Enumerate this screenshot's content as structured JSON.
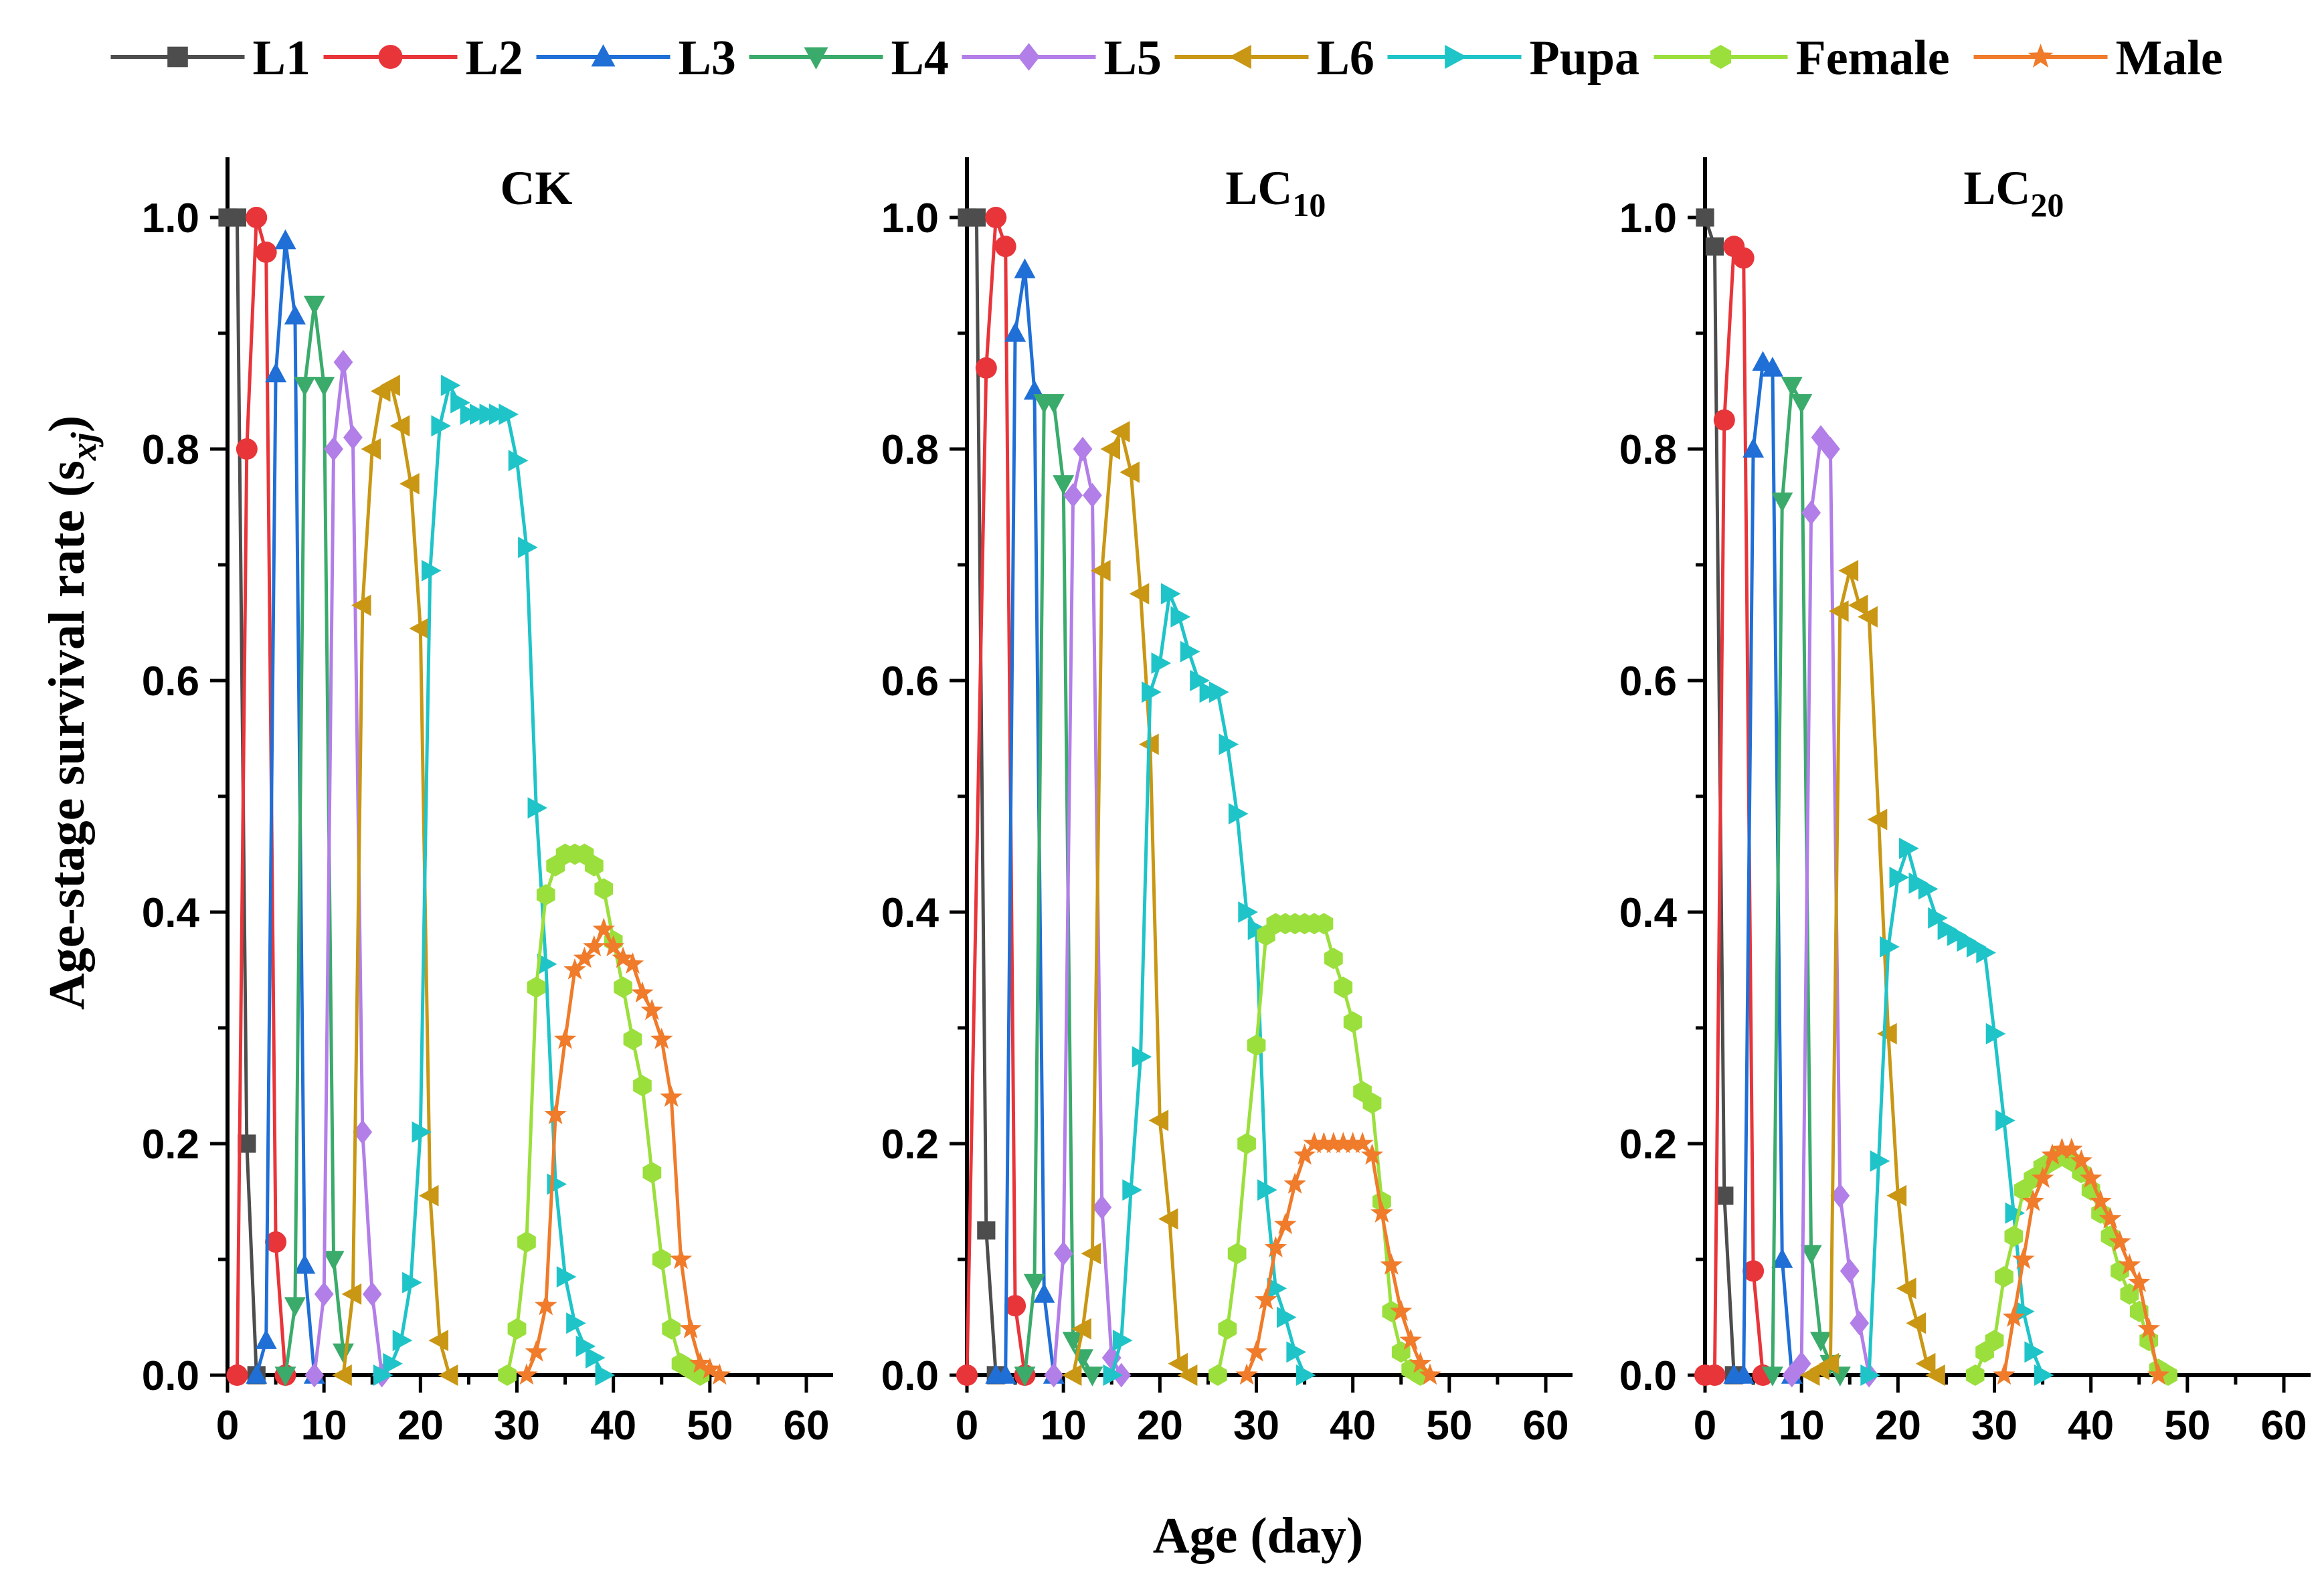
{
  "chart_data": {
    "type": "line",
    "title": "",
    "xlabel": "Age (day)",
    "ylabel": "Age-stage survival rate (s",
    "ylabel_sub": "xj",
    "ylabel_close": ")",
    "xlim": [
      0,
      60
    ],
    "ylim": [
      0,
      1.0
    ],
    "xticks": [
      "0",
      "10",
      "20",
      "30",
      "40",
      "50",
      "60"
    ],
    "yticks": [
      "0.0",
      "0.2",
      "0.4",
      "0.6",
      "0.8",
      "1.0"
    ],
    "legend_position": "top",
    "legend": [
      {
        "name": "L1",
        "color": "#4d4d4d",
        "marker": "square"
      },
      {
        "name": "L2",
        "color": "#e8353a",
        "marker": "circle"
      },
      {
        "name": "L3",
        "color": "#1f6fd6",
        "marker": "triangle-up"
      },
      {
        "name": "L4",
        "color": "#3aab6b",
        "marker": "triangle-down"
      },
      {
        "name": "L5",
        "color": "#b27ee8",
        "marker": "diamond"
      },
      {
        "name": "L6",
        "color": "#c99714",
        "marker": "triangle-left"
      },
      {
        "name": "Pupa",
        "color": "#1fc4c8",
        "marker": "triangle-right"
      },
      {
        "name": "Female",
        "color": "#9bdf3c",
        "marker": "hexagon"
      },
      {
        "name": "Male",
        "color": "#ef7b2b",
        "marker": "star"
      }
    ],
    "panels": [
      {
        "label": "CK",
        "label_sub": "",
        "series": [
          {
            "name": "L1",
            "x": [
              0,
              1,
              2,
              3
            ],
            "y": [
              1.0,
              1.0,
              0.2,
              0.0
            ]
          },
          {
            "name": "L2",
            "x": [
              1,
              2,
              3,
              4,
              5,
              6
            ],
            "y": [
              0.0,
              0.8,
              1.0,
              0.97,
              0.115,
              0.0
            ]
          },
          {
            "name": "L3",
            "x": [
              3,
              4,
              5,
              6,
              7,
              8,
              9
            ],
            "y": [
              0.0,
              0.03,
              0.865,
              0.98,
              0.915,
              0.095,
              0.0
            ]
          },
          {
            "name": "L4",
            "x": [
              6,
              7,
              8,
              9,
              10,
              11,
              12
            ],
            "y": [
              0.0,
              0.06,
              0.855,
              0.925,
              0.855,
              0.1,
              0.02
            ]
          },
          {
            "name": "L5",
            "x": [
              9,
              10,
              11,
              12,
              13,
              14,
              15,
              16
            ],
            "y": [
              0.0,
              0.07,
              0.8,
              0.875,
              0.81,
              0.21,
              0.07,
              0.0
            ]
          },
          {
            "name": "L6",
            "x": [
              12,
              13,
              14,
              15,
              16,
              17,
              18,
              19,
              20,
              21,
              22,
              23
            ],
            "y": [
              0.0,
              0.07,
              0.665,
              0.8,
              0.85,
              0.855,
              0.82,
              0.77,
              0.645,
              0.155,
              0.03,
              0.0
            ]
          },
          {
            "name": "Pupa",
            "x": [
              16,
              17,
              18,
              19,
              20,
              21,
              22,
              23,
              24,
              25,
              26,
              27,
              28,
              29,
              30,
              31,
              32,
              33,
              34,
              35,
              36,
              37,
              38,
              39
            ],
            "y": [
              0.0,
              0.01,
              0.03,
              0.08,
              0.21,
              0.695,
              0.82,
              0.855,
              0.84,
              0.83,
              0.83,
              0.83,
              0.83,
              0.83,
              0.79,
              0.715,
              0.49,
              0.355,
              0.165,
              0.085,
              0.045,
              0.025,
              0.015,
              0.0
            ]
          },
          {
            "name": "Female",
            "x": [
              29,
              30,
              31,
              32,
              33,
              34,
              35,
              36,
              37,
              38,
              39,
              40,
              41,
              42,
              43,
              44,
              45,
              46,
              47,
              48,
              49
            ],
            "y": [
              0.0,
              0.04,
              0.115,
              0.335,
              0.415,
              0.44,
              0.45,
              0.45,
              0.45,
              0.44,
              0.42,
              0.375,
              0.335,
              0.29,
              0.25,
              0.175,
              0.1,
              0.04,
              0.01,
              0.005,
              0.0
            ]
          },
          {
            "name": "Male",
            "x": [
              31,
              32,
              33,
              34,
              35,
              36,
              37,
              38,
              39,
              40,
              41,
              42,
              43,
              44,
              45,
              46,
              47,
              48,
              49,
              50,
              51
            ],
            "y": [
              0.0,
              0.02,
              0.06,
              0.225,
              0.29,
              0.35,
              0.36,
              0.37,
              0.385,
              0.37,
              0.36,
              0.355,
              0.33,
              0.315,
              0.29,
              0.24,
              0.1,
              0.04,
              0.01,
              0.005,
              0.0
            ]
          }
        ]
      },
      {
        "label": "LC",
        "label_sub": "10",
        "series": [
          {
            "name": "L1",
            "x": [
              0,
              1,
              2,
              3
            ],
            "y": [
              1.0,
              1.0,
              0.125,
              0.0
            ]
          },
          {
            "name": "L2",
            "x": [
              0,
              2,
              3,
              4,
              5,
              6
            ],
            "y": [
              0.0,
              0.87,
              1.0,
              0.975,
              0.06,
              0.0
            ]
          },
          {
            "name": "L3",
            "x": [
              3,
              4,
              5,
              6,
              7,
              8,
              9
            ],
            "y": [
              0.0,
              0.0,
              0.9,
              0.955,
              0.85,
              0.07,
              0.0
            ]
          },
          {
            "name": "L4",
            "x": [
              6,
              7,
              8,
              9,
              10,
              11,
              12,
              13
            ],
            "y": [
              0.0,
              0.08,
              0.84,
              0.84,
              0.77,
              0.03,
              0.015,
              0.0
            ]
          },
          {
            "name": "L5",
            "x": [
              9,
              10,
              11,
              12,
              13,
              14,
              15,
              16
            ],
            "y": [
              0.0,
              0.105,
              0.76,
              0.8,
              0.76,
              0.145,
              0.015,
              0.0
            ]
          },
          {
            "name": "L6",
            "x": [
              11,
              12,
              13,
              14,
              15,
              16,
              17,
              18,
              19,
              20,
              21,
              22,
              23
            ],
            "y": [
              0.0,
              0.04,
              0.105,
              0.695,
              0.8,
              0.815,
              0.78,
              0.675,
              0.545,
              0.22,
              0.135,
              0.01,
              0.0
            ]
          },
          {
            "name": "Pupa",
            "x": [
              15,
              16,
              17,
              18,
              19,
              20,
              21,
              22,
              23,
              24,
              25,
              26,
              27,
              28,
              29,
              30,
              31,
              32,
              33,
              34,
              35
            ],
            "y": [
              0.0,
              0.03,
              0.16,
              0.275,
              0.59,
              0.615,
              0.675,
              0.655,
              0.625,
              0.6,
              0.59,
              0.59,
              0.545,
              0.485,
              0.4,
              0.385,
              0.16,
              0.075,
              0.05,
              0.02,
              0.0
            ]
          },
          {
            "name": "Female",
            "x": [
              26,
              27,
              28,
              29,
              30,
              31,
              32,
              33,
              34,
              35,
              36,
              37,
              38,
              39,
              40,
              41,
              42,
              43,
              44,
              45,
              46,
              47
            ],
            "y": [
              0.0,
              0.04,
              0.105,
              0.2,
              0.285,
              0.38,
              0.39,
              0.39,
              0.39,
              0.39,
              0.39,
              0.39,
              0.36,
              0.335,
              0.305,
              0.245,
              0.235,
              0.15,
              0.055,
              0.02,
              0.005,
              0.0
            ]
          },
          {
            "name": "Male",
            "x": [
              29,
              30,
              31,
              32,
              33,
              34,
              35,
              36,
              37,
              38,
              39,
              40,
              41,
              42,
              43,
              44,
              45,
              46,
              47,
              48
            ],
            "y": [
              0.0,
              0.02,
              0.065,
              0.11,
              0.13,
              0.165,
              0.19,
              0.2,
              0.2,
              0.2,
              0.2,
              0.2,
              0.2,
              0.19,
              0.14,
              0.095,
              0.055,
              0.03,
              0.01,
              0.0
            ]
          }
        ]
      },
      {
        "label": "LC",
        "label_sub": "20",
        "series": [
          {
            "name": "L1",
            "x": [
              0,
              1,
              2,
              3
            ],
            "y": [
              1.0,
              0.975,
              0.155,
              0.0
            ]
          },
          {
            "name": "L2",
            "x": [
              0,
              1,
              2,
              3,
              4,
              5,
              6
            ],
            "y": [
              0.0,
              0.0,
              0.825,
              0.975,
              0.965,
              0.09,
              0.0
            ]
          },
          {
            "name": "L3",
            "x": [
              3,
              4,
              5,
              6,
              7,
              8,
              9
            ],
            "y": [
              0.0,
              0.0,
              0.8,
              0.875,
              0.87,
              0.1,
              0.0
            ]
          },
          {
            "name": "L4",
            "x": [
              7,
              8,
              9,
              10,
              11,
              12,
              13,
              14
            ],
            "y": [
              0.0,
              0.755,
              0.855,
              0.84,
              0.105,
              0.03,
              0.01,
              0.0
            ]
          },
          {
            "name": "L5",
            "x": [
              9,
              10,
              11,
              12,
              13,
              14,
              15,
              16,
              17
            ],
            "y": [
              0.0,
              0.01,
              0.745,
              0.81,
              0.8,
              0.155,
              0.09,
              0.045,
              0.0
            ]
          },
          {
            "name": "L6",
            "x": [
              11,
              12,
              13,
              14,
              15,
              16,
              17,
              18,
              19,
              20,
              21,
              22,
              23,
              24
            ],
            "y": [
              0.0,
              0.005,
              0.01,
              0.66,
              0.695,
              0.665,
              0.655,
              0.48,
              0.295,
              0.155,
              0.075,
              0.045,
              0.01,
              0.0
            ]
          },
          {
            "name": "Pupa",
            "x": [
              17,
              18,
              19,
              20,
              21,
              22,
              23,
              24,
              25,
              26,
              27,
              28,
              29,
              30,
              31,
              32,
              33,
              34,
              35
            ],
            "y": [
              0.0,
              0.185,
              0.37,
              0.43,
              0.455,
              0.425,
              0.42,
              0.395,
              0.385,
              0.38,
              0.375,
              0.37,
              0.365,
              0.295,
              0.22,
              0.14,
              0.055,
              0.02,
              0.0
            ]
          },
          {
            "name": "Female",
            "x": [
              28,
              29,
              30,
              31,
              32,
              33,
              34,
              35,
              36,
              37,
              38,
              39,
              40,
              41,
              42,
              43,
              44,
              45,
              46,
              47,
              48
            ],
            "y": [
              0.0,
              0.02,
              0.03,
              0.085,
              0.12,
              0.16,
              0.17,
              0.18,
              0.185,
              0.19,
              0.185,
              0.175,
              0.16,
              0.14,
              0.12,
              0.09,
              0.07,
              0.055,
              0.03,
              0.005,
              0.0
            ]
          },
          {
            "name": "Male",
            "x": [
              31,
              32,
              33,
              34,
              35,
              36,
              37,
              38,
              39,
              40,
              41,
              42,
              43,
              44,
              45,
              46,
              47
            ],
            "y": [
              0.0,
              0.05,
              0.1,
              0.15,
              0.17,
              0.19,
              0.195,
              0.195,
              0.185,
              0.17,
              0.15,
              0.135,
              0.115,
              0.095,
              0.08,
              0.04,
              0.0
            ]
          }
        ]
      }
    ]
  }
}
